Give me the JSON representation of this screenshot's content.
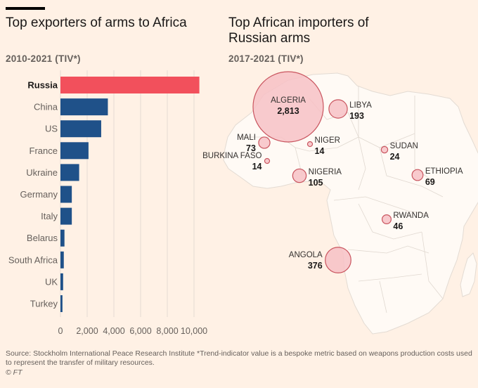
{
  "left_title": "Top exporters of arms to Africa",
  "left_subtitle": "2010-2021 (TIV*)",
  "right_title": "Top African importers of Russian arms",
  "right_subtitle": "2017-2021 (TIV*)",
  "source": "Source: Stockholm International Peace Research Institute *Trend-indicator value is a bespoke metric based on weapons production costs used to represent the transfer of military resources.",
  "copyright": "© FT",
  "colors": {
    "highlight": "#f2505c",
    "bar": "#1f5189",
    "bubble_fill": "#f7c1c6",
    "bubble_stroke": "#c9555f",
    "land": "#fffaf5",
    "border": "#d9d2cc",
    "grid": "#e6dcd3"
  },
  "chart_data": [
    {
      "type": "bar",
      "orientation": "horizontal",
      "title": "Top exporters of arms to Africa",
      "subtitle": "2010-2021 (TIV*)",
      "categories": [
        "Russia",
        "China",
        "US",
        "France",
        "Ukraine",
        "Germany",
        "Italy",
        "Belarus",
        "South Africa",
        "UK",
        "Turkey"
      ],
      "values": [
        10400,
        3550,
        3050,
        2100,
        1400,
        850,
        850,
        300,
        250,
        200,
        150
      ],
      "highlight": "Russia",
      "xlim": [
        0,
        10000
      ],
      "xticks": [
        0,
        2000,
        4000,
        6000,
        8000,
        10000
      ],
      "xtick_labels": [
        "0",
        "2,000",
        "4,000",
        "6,000",
        "8,000",
        "10,000"
      ],
      "grid": true
    },
    {
      "type": "scatter",
      "subtype": "bubble-map",
      "title": "Top African importers of Russian arms",
      "subtitle": "2017-2021 (TIV*)",
      "points": [
        {
          "name": "ALGERIA",
          "value": 2813,
          "label": "2,813"
        },
        {
          "name": "LIBYA",
          "value": 193,
          "label": "193"
        },
        {
          "name": "MALI",
          "value": 73,
          "label": "73"
        },
        {
          "name": "NIGER",
          "value": 14,
          "label": "14"
        },
        {
          "name": "SUDAN",
          "value": 24,
          "label": "24"
        },
        {
          "name": "BURKINA FASO",
          "value": 14,
          "label": "14"
        },
        {
          "name": "NIGERIA",
          "value": 105,
          "label": "105"
        },
        {
          "name": "ETHIOPIA",
          "value": 69,
          "label": "69"
        },
        {
          "name": "RWANDA",
          "value": 46,
          "label": "46"
        },
        {
          "name": "ANGOLA",
          "value": 376,
          "label": "376"
        }
      ]
    }
  ]
}
